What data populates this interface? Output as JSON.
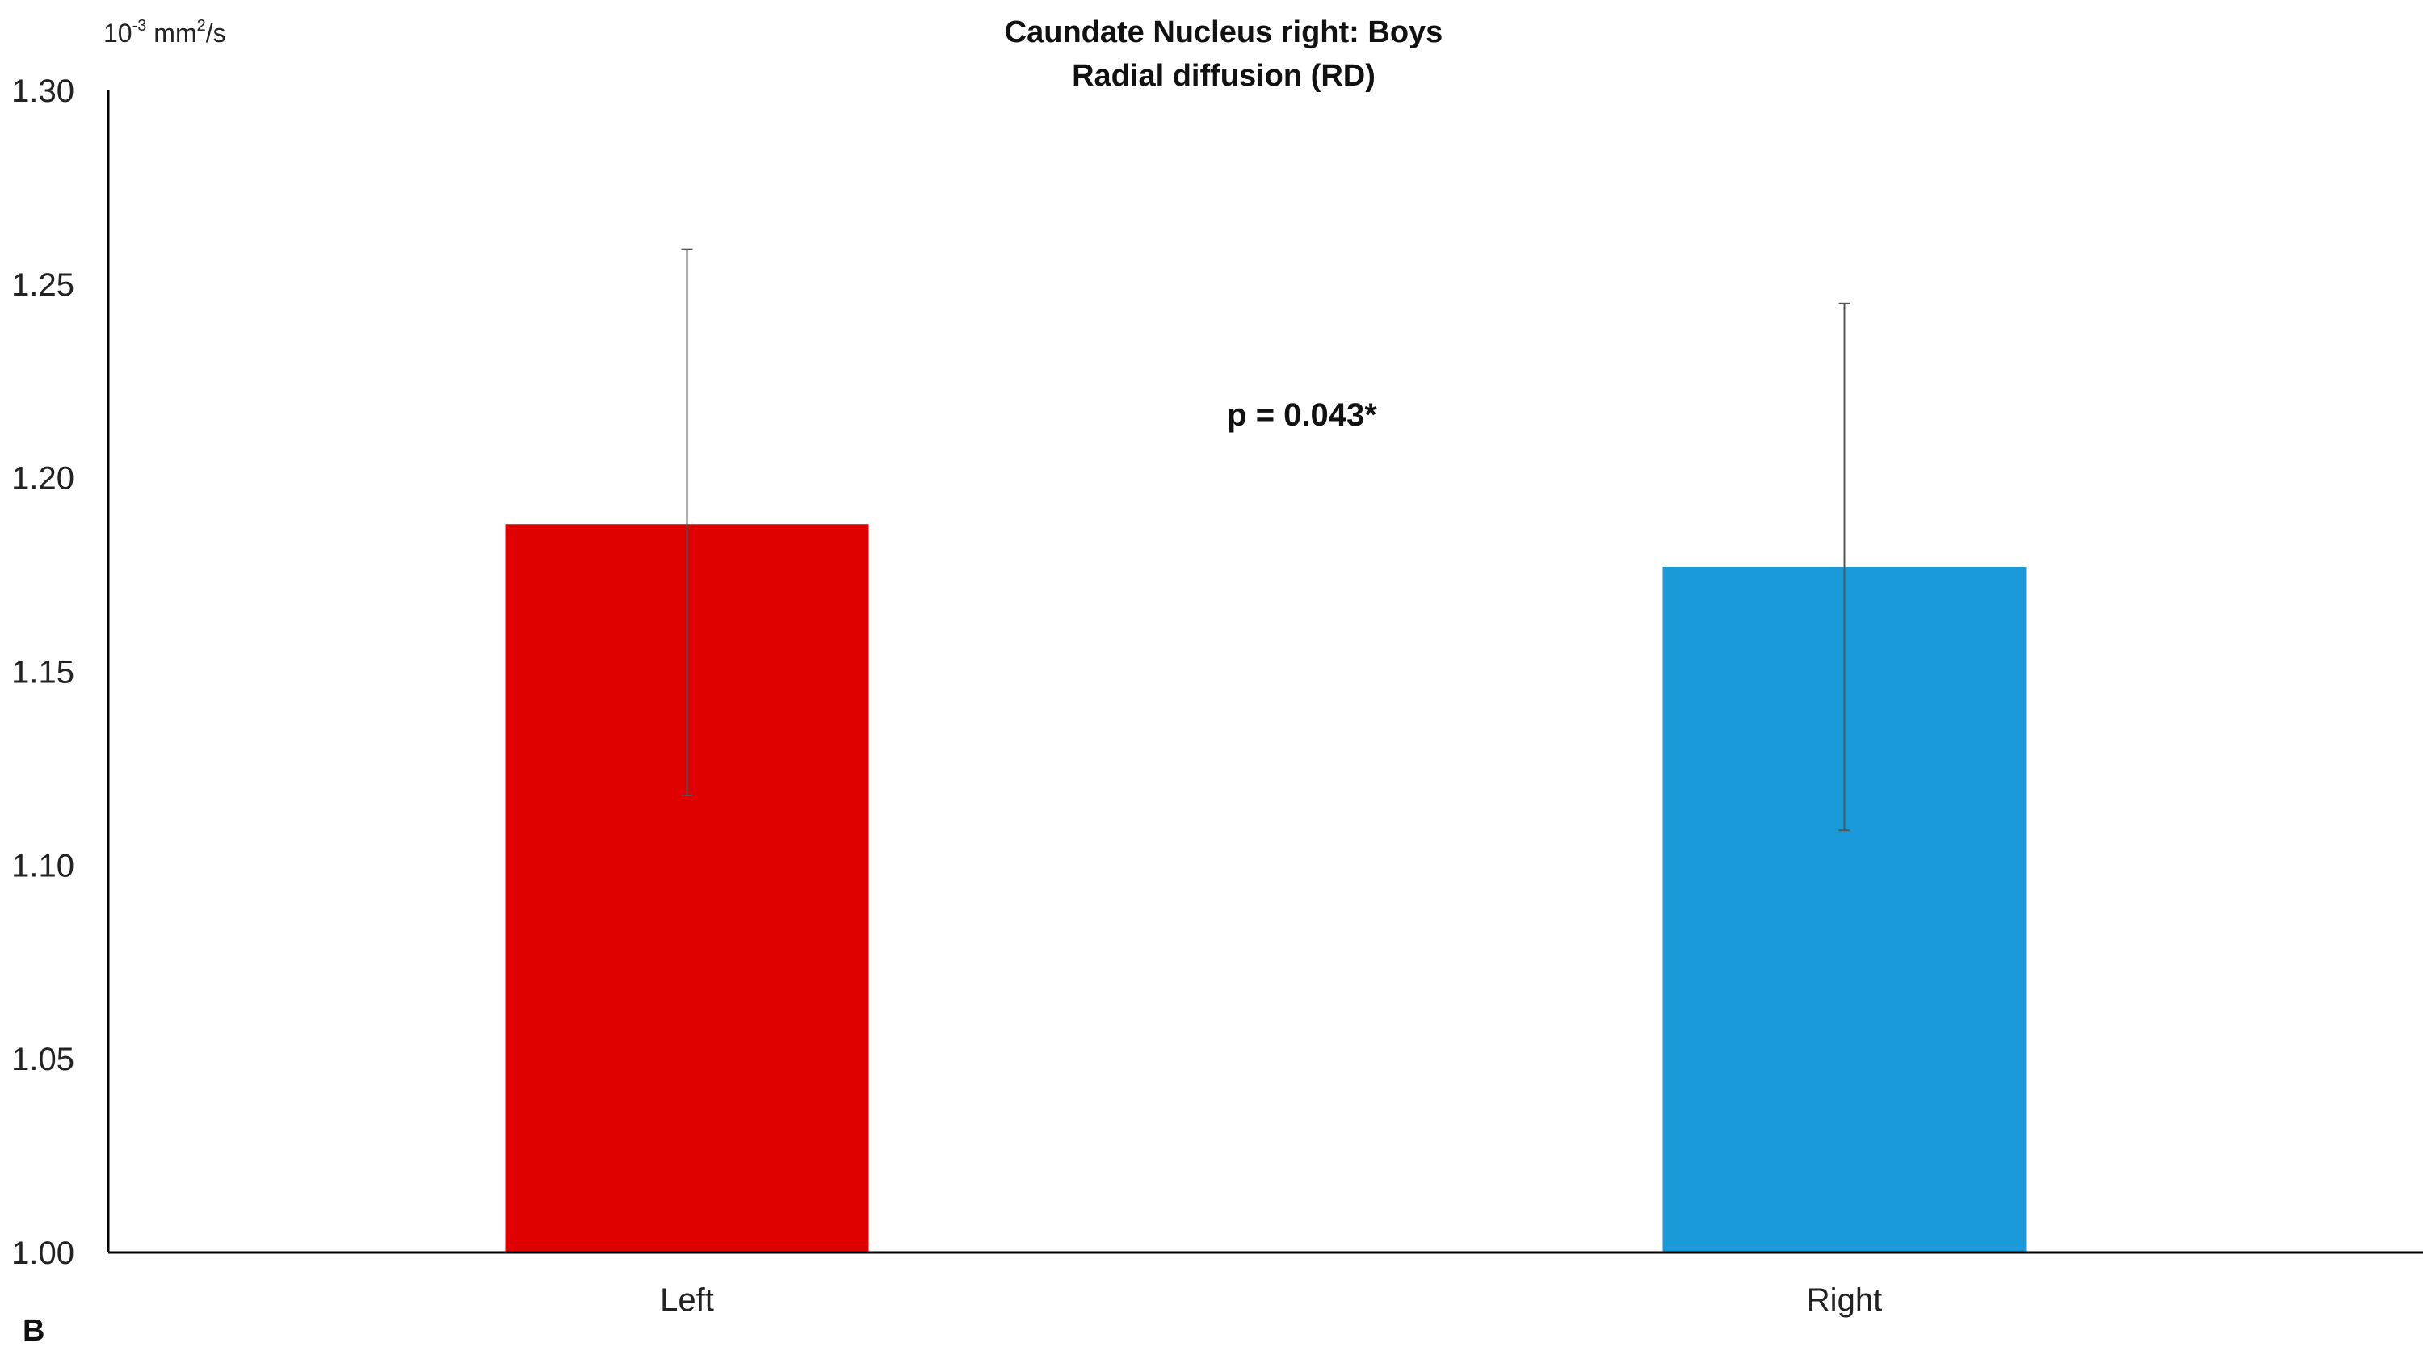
{
  "chart_data": {
    "type": "bar",
    "title_lines": [
      "Caundate Nucleus right: Boys",
      "Radial diffusion (RD)"
    ],
    "unit_label": {
      "base": "10",
      "exp": "-3",
      "mid": " mm",
      "exp2": "2",
      "tail": "/s"
    },
    "categories": [
      "Left",
      "Right"
    ],
    "values": [
      1.188,
      1.177
    ],
    "error_low": [
      1.118,
      1.109
    ],
    "error_high": [
      1.259,
      1.245
    ],
    "colors": [
      "#e00000",
      "#1a9ad9"
    ],
    "ylim": [
      1.0,
      1.3
    ],
    "yticks": [
      "1.00",
      "1.05",
      "1.10",
      "1.15",
      "1.20",
      "1.25",
      "1.30"
    ],
    "annotation": "p = 0.043*",
    "panel_label": "B",
    "grid": false,
    "legend": "none"
  }
}
